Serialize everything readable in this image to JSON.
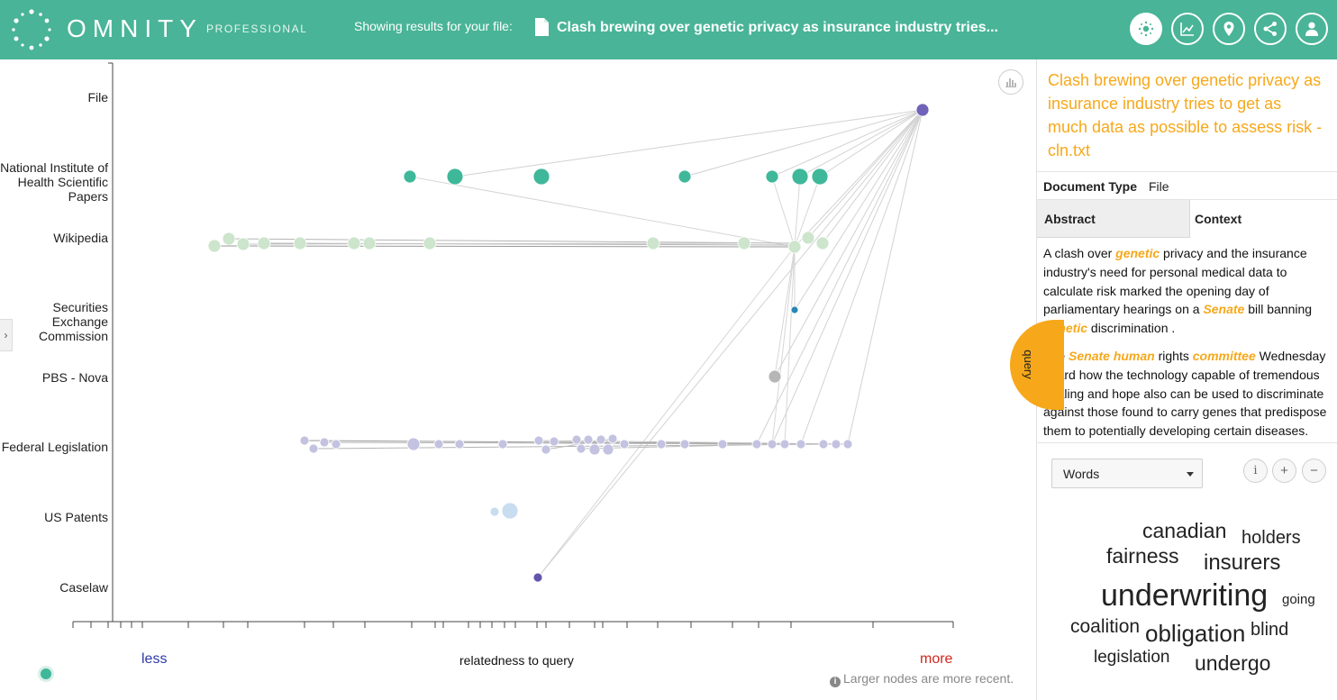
{
  "header": {
    "logo_text": "OMNITY",
    "logo_sub": "PROFESSIONAL",
    "results_label": "Showing results for your file:",
    "file_title": "Clash brewing over genetic privacy as insurance industry tries...",
    "buttons": [
      "network-icon",
      "trend-chart-icon",
      "map-pin-icon",
      "share-icon",
      "user-icon"
    ]
  },
  "graph": {
    "categories": [
      "File",
      "National Institute of Health Scientific Papers",
      "Wikipedia",
      "Securities Exchange Commission",
      "PBS - Nova",
      "Federal Legislation",
      "US Patents",
      "Caselaw"
    ],
    "axis_less": "less",
    "axis_title": "relatedness to query",
    "axis_more": "more",
    "note": "Larger nodes are more recent.",
    "colors": {
      "file": "#6f62b8",
      "nih": "#3fb89a",
      "wikipedia": "#cce5cc",
      "sec": "#2b86b4",
      "pbs": "#b6b6b6",
      "legislation": "#c3c2e0",
      "patents": "#c9ddf0",
      "caselaw": "#6255ab"
    }
  },
  "query_tab": "query",
  "panel": {
    "title": "Clash brewing over genetic privacy as insurance industry tries to get as much data as possible to assess risk - cln.txt",
    "doc_type_key": "Document Type",
    "doc_type_value": "File",
    "tab_abstract": "Abstract",
    "tab_context": "Context",
    "abstract_p1": [
      "A clash over ",
      "genetic",
      " privacy and the insurance industry's need for personal medical data to calculate risk marked the opening day of parliamentary hearings on a ",
      "Senate",
      " bill banning ",
      "genetic",
      " discrimination ."
    ],
    "abstract_p2": [
      "The ",
      "Senate",
      " ",
      "human",
      " rights ",
      "committee",
      " Wednesday heard how the technology capable of tremendous healing and hope also can be used to discriminate against those found to carry genes that predispose them to potentially developing certain diseases."
    ],
    "words_select": "Words",
    "info_btn": "i",
    "plus_btn": "+",
    "minus_btn": "−",
    "cloud": [
      "canadian",
      "holders",
      "fairness",
      "insurers",
      "underwriting",
      "going",
      "coalition",
      "obligation",
      "blind",
      "legislation",
      "undergo"
    ]
  }
}
